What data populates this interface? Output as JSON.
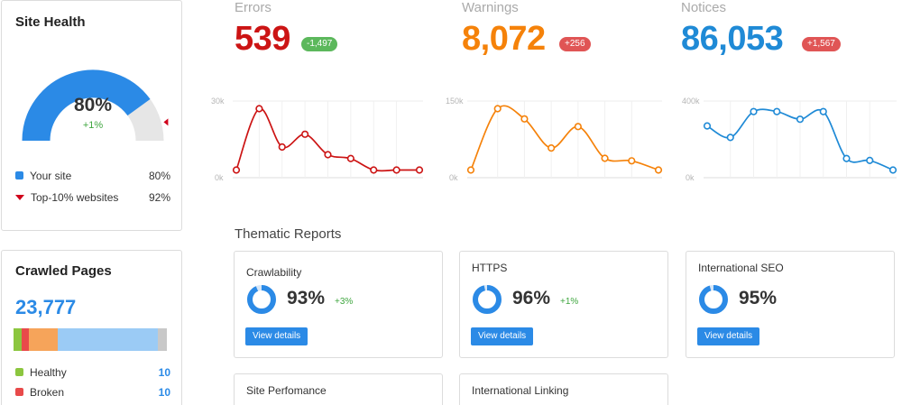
{
  "site_health": {
    "title": "Site Health",
    "percent": "80%",
    "delta": "+1%",
    "gauge_value": 80,
    "top10_value": 92,
    "legend": [
      {
        "label": "Your site",
        "value": "80%",
        "color": "#2b8ae6",
        "marker": "square"
      },
      {
        "label": "Top-10% websites",
        "value": "92%",
        "color": "#d0021b",
        "marker": "triangle"
      }
    ]
  },
  "crawled_pages": {
    "title": "Crawled Pages",
    "count": "23,777",
    "segments": [
      {
        "color": "#8cc63f",
        "share": 5
      },
      {
        "color": "#e84a4a",
        "share": 5
      },
      {
        "color": "#f6a45a",
        "share": 19
      },
      {
        "color": "#9bcbf5",
        "share": 65
      },
      {
        "color": "#c8c8c8",
        "share": 6
      }
    ],
    "legend": [
      {
        "label": "Healthy",
        "value": "10",
        "color": "#8cc63f"
      },
      {
        "label": "Broken",
        "value": "10",
        "color": "#e84a4a"
      }
    ]
  },
  "metrics": [
    {
      "label": "Errors",
      "value": "539",
      "badge": "-1,497",
      "badge_color": "#5cb85c",
      "color": "#cc1414",
      "chart_data": {
        "type": "line",
        "y_top_label": "30k",
        "y_bottom_label": "0k",
        "ylim": [
          0,
          30000
        ],
        "values": [
          3000,
          27000,
          12000,
          17000,
          9000,
          7500,
          3000,
          3000,
          3000
        ]
      }
    },
    {
      "label": "Warnings",
      "value": "8,072",
      "badge": "+256",
      "badge_color": "#e05555",
      "color": "#f5820a",
      "chart_data": {
        "type": "line",
        "y_top_label": "150k",
        "y_bottom_label": "0k",
        "ylim": [
          0,
          150000
        ],
        "values": [
          15000,
          135000,
          115000,
          58000,
          100000,
          38000,
          33000,
          15000
        ]
      }
    },
    {
      "label": "Notices",
      "value": "86,053",
      "badge": "+1,567",
      "badge_color": "#e05555",
      "color": "#1f8ad6",
      "chart_data": {
        "type": "line",
        "y_top_label": "400k",
        "y_bottom_label": "0k",
        "ylim": [
          0,
          400000
        ],
        "values": [
          270000,
          210000,
          345000,
          345000,
          305000,
          345000,
          100000,
          90000,
          40000
        ]
      }
    }
  ],
  "thematic": {
    "title": "Thematic Reports",
    "button_label": "View details",
    "cards": [
      {
        "title": "Crawlability",
        "percent": "93%",
        "delta": "+3%",
        "ring_value": 93
      },
      {
        "title": "HTTPS",
        "percent": "96%",
        "delta": "+1%",
        "ring_value": 96
      },
      {
        "title": "International SEO",
        "percent": "95%",
        "delta": "",
        "ring_value": 95
      },
      {
        "title": "Site Perfomance"
      },
      {
        "title": "International Linking"
      }
    ]
  }
}
